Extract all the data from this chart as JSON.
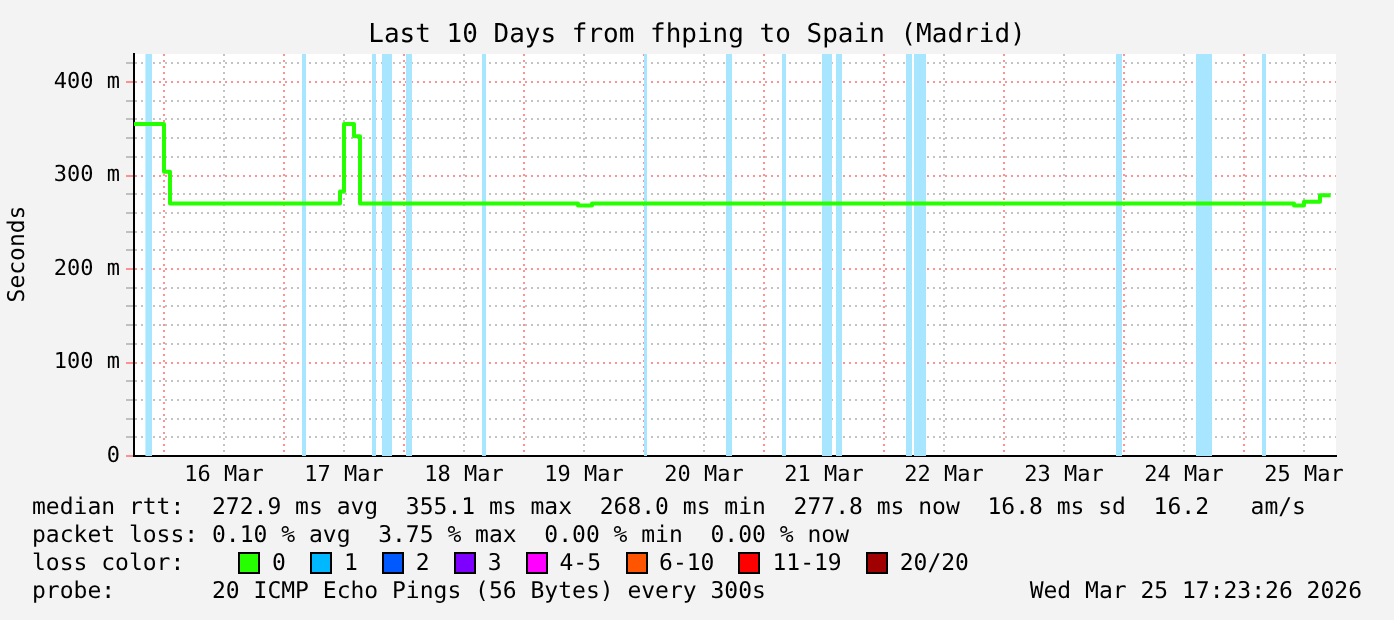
{
  "chart_data": {
    "type": "step",
    "title": "Last 10 Days from fhping to Spain (Madrid)",
    "ylabel": "Seconds",
    "x": [
      "2026-03-15T18:00",
      "2026-03-16T00:00",
      "2026-03-16T01:12",
      "2026-03-17T11:12",
      "2026-03-17T12:00",
      "2026-03-17T14:00",
      "2026-03-17T15:12",
      "2026-03-19T10:48",
      "2026-03-19T13:36",
      "2026-03-25T10:00",
      "2026-03-25T12:00",
      "2026-03-25T15:12",
      "2026-03-25T17:20"
    ],
    "series": [
      {
        "name": "0",
        "color": "#26ff00",
        "values": [
          355,
          304,
          270,
          283,
          355,
          342,
          270,
          268,
          270,
          268,
          272,
          279,
          279
        ]
      },
      {
        "name": "1",
        "color": "#00b8ff",
        "values": [
          null,
          null,
          null,
          null,
          null,
          null,
          null,
          null,
          null,
          null,
          null,
          null,
          null
        ]
      },
      {
        "name": "2",
        "color": "#0059ff",
        "values": [
          null,
          null,
          null,
          null,
          null,
          null,
          null,
          null,
          null,
          null,
          null,
          null,
          null
        ]
      },
      {
        "name": "3",
        "color": "#7e00ff",
        "values": [
          null,
          null,
          null,
          null,
          null,
          null,
          null,
          null,
          null,
          null,
          null,
          null,
          null
        ]
      },
      {
        "name": "4-5",
        "color": "#ff00ff",
        "values": [
          null,
          null,
          null,
          null,
          null,
          null,
          null,
          null,
          null,
          null,
          null,
          null,
          null
        ]
      },
      {
        "name": "6-10",
        "color": "#ff5500",
        "values": [
          null,
          null,
          null,
          null,
          null,
          null,
          null,
          null,
          null,
          null,
          null,
          null,
          null
        ]
      },
      {
        "name": "11-19",
        "color": "#ff0000",
        "values": [
          null,
          null,
          null,
          null,
          null,
          null,
          null,
          null,
          null,
          null,
          null,
          null,
          null
        ]
      },
      {
        "name": "20/20",
        "color": "#a10000",
        "values": [
          null,
          null,
          null,
          null,
          null,
          null,
          null,
          null,
          null,
          null,
          null,
          null,
          null
        ]
      }
    ],
    "legend": "bottom",
    "legend_title": "loss color:",
    "xlim": [
      "2026-03-15T18:00",
      "2026-03-25T18:24"
    ],
    "xticks": [
      {
        "value": "2026-03-16",
        "label": null
      },
      {
        "value": "2026-03-16T12:00",
        "label": "16 Mar"
      },
      {
        "value": "2026-03-17",
        "label": null
      },
      {
        "value": "2026-03-17T12:00",
        "label": "17 Mar"
      },
      {
        "value": "2026-03-18",
        "label": null
      },
      {
        "value": "2026-03-18T12:00",
        "label": "18 Mar"
      },
      {
        "value": "2026-03-19",
        "label": null
      },
      {
        "value": "2026-03-19T12:00",
        "label": "19 Mar"
      },
      {
        "value": "2026-03-20",
        "label": null
      },
      {
        "value": "2026-03-20T12:00",
        "label": "20 Mar"
      },
      {
        "value": "2026-03-21",
        "label": null
      },
      {
        "value": "2026-03-21T12:00",
        "label": "21 Mar"
      },
      {
        "value": "2026-03-22",
        "label": null
      },
      {
        "value": "2026-03-22T12:00",
        "label": "22 Mar"
      },
      {
        "value": "2026-03-23",
        "label": null
      },
      {
        "value": "2026-03-23T12:00",
        "label": "23 Mar"
      },
      {
        "value": "2026-03-24",
        "label": null
      },
      {
        "value": "2026-03-24T12:00",
        "label": "24 Mar"
      },
      {
        "value": "2026-03-25",
        "label": null
      },
      {
        "value": "2026-03-25T12:00",
        "label": "25 Mar"
      }
    ],
    "ylim": [
      0,
      430
    ],
    "yticks": [
      0,
      {
        "value": 20,
        "label": null
      },
      {
        "value": 40,
        "label": null
      },
      {
        "value": 60,
        "label": null
      },
      {
        "value": 80,
        "label": null
      },
      {
        "value": 100,
        "label": "100 m"
      },
      {
        "value": 120,
        "label": null
      },
      {
        "value": 140,
        "label": null
      },
      {
        "value": 160,
        "label": null
      },
      {
        "value": 180,
        "label": null
      },
      {
        "value": 200,
        "label": "200 m"
      },
      {
        "value": 220,
        "label": null
      },
      {
        "value": 240,
        "label": null
      },
      {
        "value": 260,
        "label": null
      },
      {
        "value": 280,
        "label": null
      },
      {
        "value": 300,
        "label": "300 m"
      },
      {
        "value": 320,
        "label": null
      },
      {
        "value": 340,
        "label": null
      },
      {
        "value": 360,
        "label": null
      },
      {
        "value": 380,
        "label": null
      },
      {
        "value": 400,
        "label": "400 m"
      },
      {
        "value": 420,
        "label": null
      }
    ],
    "grid": true,
    "bands": [
      {
        "axis": "x",
        "from": "2026-03-15T20:17",
        "to": "2026-03-15T21:36",
        "color": "#a8e6ff"
      },
      {
        "axis": "x",
        "from": "2026-03-17T03:36",
        "to": "2026-03-17T04:24",
        "color": "#a8e6ff"
      },
      {
        "axis": "x",
        "from": "2026-03-17T17:36",
        "to": "2026-03-17T18:24",
        "color": "#a8e6ff"
      },
      {
        "axis": "x",
        "from": "2026-03-17T19:36",
        "to": "2026-03-17T21:36",
        "color": "#a8e6ff"
      },
      {
        "axis": "x",
        "from": "2026-03-18T00:24",
        "to": "2026-03-18T01:36",
        "color": "#a8e6ff"
      },
      {
        "axis": "x",
        "from": "2026-03-18T15:36",
        "to": "2026-03-18T16:24",
        "color": "#a8e6ff"
      },
      {
        "axis": "x",
        "from": "2026-03-20T00:00",
        "to": "2026-03-20T00:24",
        "color": "#a8e6ff"
      },
      {
        "axis": "x",
        "from": "2026-03-20T16:24",
        "to": "2026-03-20T17:36",
        "color": "#a8e6ff"
      },
      {
        "axis": "x",
        "from": "2026-03-21T03:36",
        "to": "2026-03-21T04:24",
        "color": "#a8e6ff"
      },
      {
        "axis": "x",
        "from": "2026-03-21T11:36",
        "to": "2026-03-21T13:36",
        "color": "#a8e6ff"
      },
      {
        "axis": "x",
        "from": "2026-03-21T14:24",
        "to": "2026-03-21T15:36",
        "color": "#a8e6ff"
      },
      {
        "axis": "x",
        "from": "2026-03-22T04:24",
        "to": "2026-03-22T05:36",
        "color": "#a8e6ff"
      },
      {
        "axis": "x",
        "from": "2026-03-22T06:00",
        "to": "2026-03-22T08:24",
        "color": "#a8e6ff"
      },
      {
        "axis": "x",
        "from": "2026-03-23T22:24",
        "to": "2026-03-23T23:36",
        "color": "#a8e6ff"
      },
      {
        "axis": "x",
        "from": "2026-03-24T14:24",
        "to": "2026-03-24T17:36",
        "color": "#a8e6ff"
      },
      {
        "axis": "x",
        "from": "2026-03-25T03:36",
        "to": "2026-03-25T04:24",
        "color": "#a8e6ff"
      }
    ],
    "annotations": [
      "median rtt:  272.9 ms avg  355.1 ms max  268.0 ms min  277.8 ms now  16.8 ms sd  16.2   am/s",
      "packet loss: 0.10 % avg  3.75 % max  0.00 % min  0.00 % now",
      "probe:       20 ICMP Echo Pings (56 Bytes) every 300s",
      "Wed Mar 25 17:23:26 2026"
    ]
  }
}
